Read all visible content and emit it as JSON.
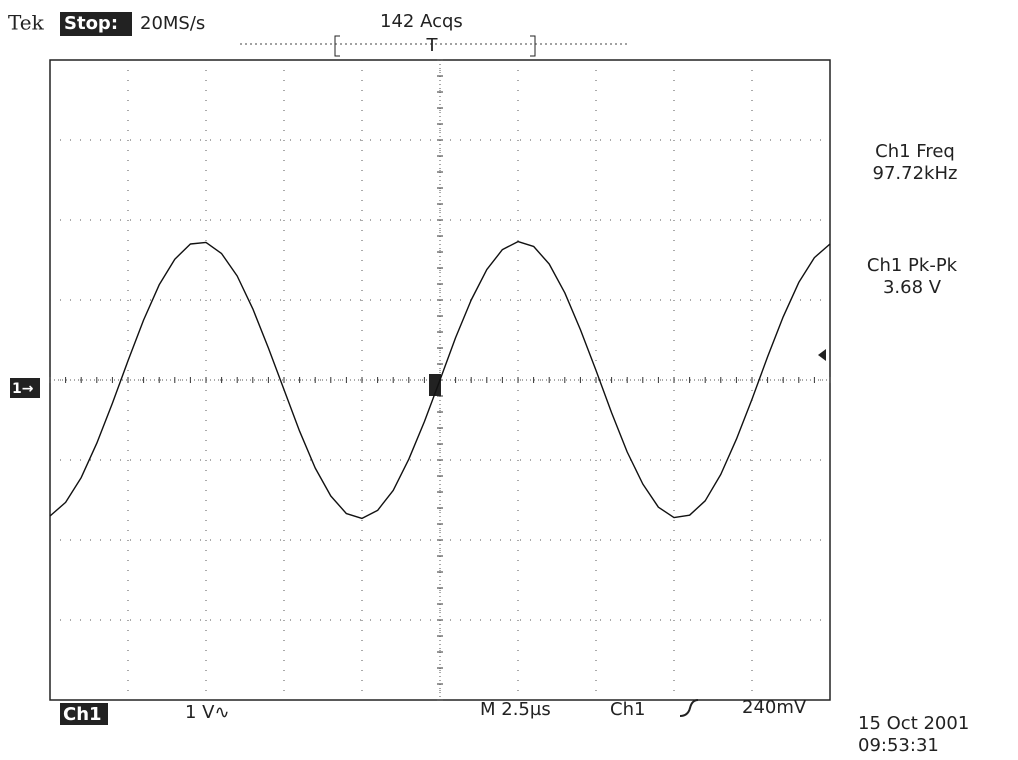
{
  "chart_data": {
    "type": "line",
    "brand": "Tek",
    "status": "Stop:",
    "sample_rate": "20MS/s",
    "acquisitions": "142 Acqs",
    "trigger_marker": "T",
    "measurements": [
      {
        "label": "Ch1 Freq",
        "value": "97.72kHz"
      },
      {
        "label": "Ch1 Pk-Pk",
        "value": "3.68 V"
      }
    ],
    "channel_marker": "1→",
    "channel": "Ch1",
    "vertical_scale": "1 V∿",
    "timebase": "M 2.5µs",
    "trigger_source": "Ch1",
    "trigger_level": "240mV",
    "date": "15 Oct 2001",
    "time": "09:53:31",
    "color": "#111111",
    "xlim": [
      -12.5,
      12.5
    ],
    "ylim": [
      -4,
      4
    ],
    "x": [
      -12.5,
      -12,
      -11.5,
      -11,
      -10.5,
      -10,
      -9.5,
      -9,
      -8.5,
      -8,
      -7.5,
      -7,
      -6.5,
      -6,
      -5.5,
      -5,
      -4.5,
      -4,
      -3.5,
      -3,
      -2.5,
      -2,
      -1.5,
      -1,
      -0.5,
      0,
      0.5,
      1,
      1.5,
      2,
      2.5,
      3,
      3.5,
      4,
      4.5,
      5,
      5.5,
      6,
      6.5,
      7,
      7.5,
      8,
      8.5,
      9,
      9.5,
      10,
      10.5,
      11,
      11.5,
      12,
      12.5
    ],
    "values": [
      -1.7,
      -1.53,
      -1.22,
      -0.79,
      -0.29,
      0.24,
      0.75,
      1.19,
      1.51,
      1.7,
      1.72,
      1.58,
      1.3,
      0.89,
      0.4,
      -0.12,
      -0.64,
      -1.1,
      -1.45,
      -1.67,
      -1.73,
      -1.63,
      -1.38,
      -0.99,
      -0.52,
      0,
      0.53,
      1.0,
      1.38,
      1.63,
      1.73,
      1.67,
      1.45,
      1.09,
      0.63,
      0.12,
      -0.41,
      -0.9,
      -1.3,
      -1.59,
      -1.72,
      -1.69,
      -1.51,
      -1.18,
      -0.74,
      -0.24,
      0.29,
      0.79,
      1.22,
      1.53,
      1.7
    ]
  }
}
